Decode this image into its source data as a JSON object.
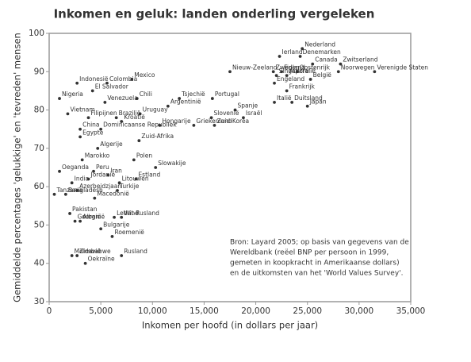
{
  "chart_data": {
    "type": "scatter",
    "title": "Inkomen en geluk: landen onderling vergeleken",
    "xlabel": "Inkomen per hoofd (in dollars per jaar)",
    "ylabel": "Gemiddelde percentages 'gelukkige' en 'tevreden' mensen",
    "note": [
      "Bron: Layard 2005; op basis van gegevens van de",
      "Wereldbank (reëel BNP per persoon in 1999,",
      "gemeten in koopkracht in Amerikaanse dollars)",
      "en de uitkomsten van het 'World Values Survey'."
    ],
    "xlim": [
      0,
      35000
    ],
    "ylim": [
      30,
      100
    ],
    "xticks": [
      0,
      {
        "value": 5000,
        "label": "5,000"
      },
      {
        "value": 10000,
        "label": "10,000"
      },
      {
        "value": 15000,
        "label": "15,000"
      },
      {
        "value": 20000,
        "label": "20,000"
      },
      {
        "value": 25000,
        "label": "25,000"
      },
      {
        "value": 30000,
        "label": "30,000"
      },
      {
        "value": 35000,
        "label": "35,000"
      }
    ],
    "yticks": [
      30,
      40,
      50,
      60,
      70,
      80,
      90,
      100
    ],
    "color": "#333333",
    "points": [
      {
        "label": "Ierland",
        "x": 22300,
        "y": 94
      },
      {
        "label": "Nederland",
        "x": 24500,
        "y": 96
      },
      {
        "label": "Denemarken",
        "x": 24300,
        "y": 94
      },
      {
        "label": "Canada",
        "x": 25500,
        "y": 92
      },
      {
        "label": "Zweden",
        "x": 21700,
        "y": 90
      },
      {
        "label": "Finland",
        "x": 22500,
        "y": 90
      },
      {
        "label": "Singapore",
        "x": 22000,
        "y": 89
      },
      {
        "label": "Oostenrijk",
        "x": 24000,
        "y": 90
      },
      {
        "label": "Australië",
        "x": 23000,
        "y": 89
      },
      {
        "label": "Engeland",
        "x": 21800,
        "y": 87
      },
      {
        "label": "België",
        "x": 25300,
        "y": 88
      },
      {
        "label": "Frankrijk",
        "x": 23000,
        "y": 85
      },
      {
        "label": "Duitsland",
        "x": 23500,
        "y": 82
      },
      {
        "label": "Italië",
        "x": 21800,
        "y": 82
      },
      {
        "label": "Japan",
        "x": 25000,
        "y": 81
      },
      {
        "label": "Zwitserland",
        "x": 28200,
        "y": 92
      },
      {
        "label": "Noorwegen",
        "x": 28000,
        "y": 90
      },
      {
        "label": "Verenigde Staten",
        "x": 31500,
        "y": 90
      },
      {
        "label": "Nieuw-Zeeland",
        "x": 17500,
        "y": 90
      },
      {
        "label": "Portugal",
        "x": 15800,
        "y": 83
      },
      {
        "label": "Spanje",
        "x": 18000,
        "y": 80
      },
      {
        "label": "Slovenië",
        "x": 15700,
        "y": 78
      },
      {
        "label": "Israël",
        "x": 18800,
        "y": 78
      },
      {
        "label": "Griekenland",
        "x": 14000,
        "y": 76
      },
      {
        "label": "Zuid-Korea",
        "x": 16000,
        "y": 76
      },
      {
        "label": "Tsjechië",
        "x": 12600,
        "y": 83
      },
      {
        "label": "Argentinië",
        "x": 11500,
        "y": 81
      },
      {
        "label": "Hongarije",
        "x": 10700,
        "y": 76
      },
      {
        "label": "Indonesië",
        "x": 2700,
        "y": 87
      },
      {
        "label": "Colombia",
        "x": 5600,
        "y": 87
      },
      {
        "label": "Mexico",
        "x": 8000,
        "y": 88
      },
      {
        "label": "El Salvador",
        "x": 4200,
        "y": 85
      },
      {
        "label": "Nigeria",
        "x": 1000,
        "y": 83
      },
      {
        "label": "Chili",
        "x": 8500,
        "y": 83
      },
      {
        "label": "Venezuela",
        "x": 5400,
        "y": 82
      },
      {
        "label": "Vietnam",
        "x": 1800,
        "y": 79
      },
      {
        "label": "Uruguay",
        "x": 8800,
        "y": 79
      },
      {
        "label": "Filipijnen",
        "x": 3800,
        "y": 78
      },
      {
        "label": "Brazilië",
        "x": 6500,
        "y": 78
      },
      {
        "label": "Kroatië",
        "x": 7000,
        "y": 77
      },
      {
        "label": "Dominicaanse Republiek",
        "x": 5000,
        "y": 75
      },
      {
        "label": "Egypte",
        "x": 3000,
        "y": 73
      },
      {
        "label": "China",
        "x": 3000,
        "y": 75
      },
      {
        "label": "Zuid-Afrika",
        "x": 8700,
        "y": 72
      },
      {
        "label": "Algerije",
        "x": 4700,
        "y": 70
      },
      {
        "label": "Marokko",
        "x": 3200,
        "y": 67
      },
      {
        "label": "Polen",
        "x": 8200,
        "y": 67
      },
      {
        "label": "Oeganda",
        "x": 1000,
        "y": 64
      },
      {
        "label": "Peru",
        "x": 4300,
        "y": 64
      },
      {
        "label": "Slowakije",
        "x": 10300,
        "y": 65
      },
      {
        "label": "Jordanië",
        "x": 3800,
        "y": 62
      },
      {
        "label": "Iran",
        "x": 5700,
        "y": 63
      },
      {
        "label": "India",
        "x": 2200,
        "y": 61
      },
      {
        "label": "Estland",
        "x": 8400,
        "y": 62
      },
      {
        "label": "Litouwen",
        "x": 6800,
        "y": 61
      },
      {
        "label": "Azerbeidzjaan",
        "x": 2700,
        "y": 59
      },
      {
        "label": "Turkije",
        "x": 6600,
        "y": 59
      },
      {
        "label": "Bangladesh",
        "x": 1600,
        "y": 58
      },
      {
        "label": "Tanzania",
        "x": 500,
        "y": 58
      },
      {
        "label": "Macedonië",
        "x": 4400,
        "y": 57
      },
      {
        "label": "Pakistan",
        "x": 2000,
        "y": 53
      },
      {
        "label": "Letland",
        "x": 6300,
        "y": 52
      },
      {
        "label": "Albanië",
        "x": 3000,
        "y": 51
      },
      {
        "label": "Wit-Rusland",
        "x": 7000,
        "y": 52
      },
      {
        "label": "Georgië",
        "x": 2500,
        "y": 51
      },
      {
        "label": "Bulgarije",
        "x": 5000,
        "y": 49
      },
      {
        "label": "Roemenië",
        "x": 6100,
        "y": 47
      },
      {
        "label": "Moldavië",
        "x": 2200,
        "y": 42
      },
      {
        "label": "Zimbabwe",
        "x": 2700,
        "y": 42
      },
      {
        "label": "Rusland",
        "x": 7000,
        "y": 42
      },
      {
        "label": "Oekraïne",
        "x": 3500,
        "y": 40
      }
    ]
  }
}
